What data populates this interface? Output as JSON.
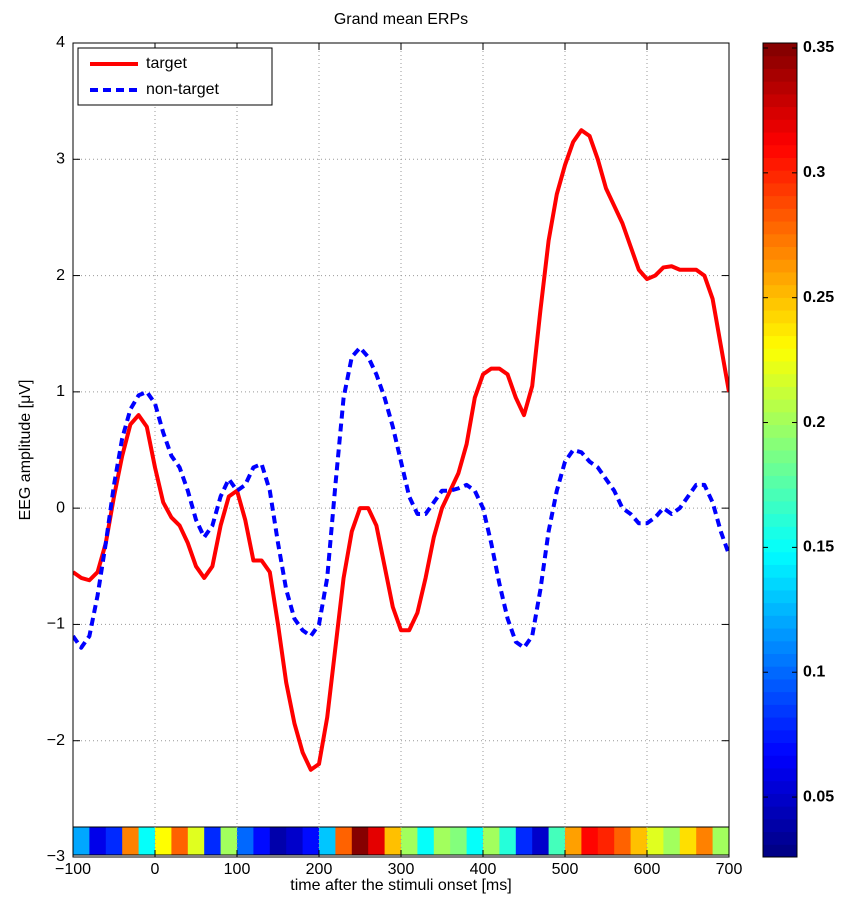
{
  "chart_data": {
    "type": "line",
    "title": "Grand mean ERPs",
    "xlabel": "time after the stimuli onset [ms]",
    "ylabel": "EEG amplitude [μV]",
    "x": [
      -100,
      -90,
      -80,
      -70,
      -60,
      -50,
      -40,
      -30,
      -20,
      -10,
      0,
      10,
      20,
      30,
      40,
      50,
      60,
      70,
      80,
      90,
      100,
      110,
      120,
      130,
      140,
      150,
      160,
      170,
      180,
      190,
      200,
      210,
      220,
      230,
      240,
      250,
      260,
      270,
      280,
      290,
      300,
      310,
      320,
      330,
      340,
      350,
      360,
      370,
      380,
      390,
      400,
      410,
      420,
      430,
      440,
      450,
      460,
      470,
      480,
      490,
      500,
      510,
      520,
      530,
      540,
      550,
      560,
      570,
      580,
      590,
      600,
      610,
      620,
      630,
      640,
      650,
      660,
      670,
      680,
      690,
      700
    ],
    "series": [
      {
        "name": "target",
        "color": "#ff0000",
        "dash": false,
        "values": [
          -0.55,
          -0.6,
          -0.62,
          -0.55,
          -0.3,
          0.1,
          0.45,
          0.72,
          0.8,
          0.7,
          0.35,
          0.05,
          -0.08,
          -0.15,
          -0.3,
          -0.5,
          -0.6,
          -0.5,
          -0.15,
          0.1,
          0.15,
          -0.1,
          -0.45,
          -0.45,
          -0.55,
          -1.0,
          -1.5,
          -1.85,
          -2.1,
          -2.25,
          -2.2,
          -1.8,
          -1.2,
          -0.6,
          -0.2,
          0.0,
          0.0,
          -0.15,
          -0.5,
          -0.85,
          -1.05,
          -1.05,
          -0.9,
          -0.6,
          -0.25,
          0.0,
          0.15,
          0.3,
          0.55,
          0.95,
          1.15,
          1.2,
          1.2,
          1.15,
          0.95,
          0.8,
          1.05,
          1.7,
          2.3,
          2.7,
          2.95,
          3.15,
          3.25,
          3.2,
          3.0,
          2.75,
          2.6,
          2.45,
          2.25,
          2.05,
          1.97,
          2.0,
          2.07,
          2.08,
          2.05,
          2.05,
          2.05,
          2.0,
          1.8,
          1.4,
          1.0
        ]
      },
      {
        "name": "non-target",
        "color": "#0000ff",
        "dash": true,
        "values": [
          -1.1,
          -1.2,
          -1.1,
          -0.75,
          -0.3,
          0.2,
          0.6,
          0.85,
          0.97,
          1.0,
          0.9,
          0.65,
          0.45,
          0.35,
          0.15,
          -0.1,
          -0.25,
          -0.15,
          0.1,
          0.25,
          0.15,
          0.2,
          0.35,
          0.38,
          0.15,
          -0.3,
          -0.7,
          -0.95,
          -1.05,
          -1.1,
          -1.0,
          -0.6,
          0.2,
          0.95,
          1.3,
          1.38,
          1.3,
          1.15,
          0.95,
          0.7,
          0.4,
          0.1,
          -0.05,
          -0.05,
          0.05,
          0.15,
          0.15,
          0.17,
          0.2,
          0.15,
          0.0,
          -0.3,
          -0.65,
          -0.95,
          -1.15,
          -1.2,
          -1.1,
          -0.7,
          -0.2,
          0.15,
          0.4,
          0.5,
          0.48,
          0.4,
          0.35,
          0.25,
          0.15,
          0.0,
          -0.05,
          -0.13,
          -0.13,
          -0.08,
          0.0,
          -0.05,
          0.0,
          0.1,
          0.2,
          0.2,
          0.05,
          -0.2,
          -0.4
        ]
      }
    ],
    "xlim": [
      -100,
      700
    ],
    "xticks": [
      {
        "value": -100,
        "label": "−100"
      },
      0,
      100,
      200,
      300,
      400,
      500,
      600,
      700
    ],
    "ylim": [
      -3,
      4
    ],
    "yticks": [
      {
        "value": -3,
        "label": "−3"
      },
      {
        "value": -2,
        "label": "−2"
      },
      {
        "value": -1,
        "label": "−1"
      },
      0,
      1,
      2,
      3,
      4
    ],
    "grid": true,
    "legend": "upper left",
    "strip": {
      "bins": [
        -100,
        -80,
        -60,
        -40,
        -20,
        0,
        20,
        40,
        60,
        80,
        100,
        120,
        140,
        160,
        180,
        200,
        220,
        240,
        260,
        280,
        300,
        320,
        340,
        360,
        380,
        400,
        420,
        440,
        460,
        480,
        500,
        520,
        540,
        560,
        580,
        600,
        620,
        640,
        660,
        680,
        700
      ],
      "values": [
        0.12,
        0.06,
        0.08,
        0.27,
        0.15,
        0.23,
        0.28,
        0.22,
        0.08,
        0.2,
        0.1,
        0.07,
        0.04,
        0.05,
        0.07,
        0.13,
        0.28,
        0.35,
        0.32,
        0.25,
        0.2,
        0.15,
        0.2,
        0.19,
        0.15,
        0.2,
        0.16,
        0.08,
        0.05,
        0.17,
        0.26,
        0.31,
        0.3,
        0.28,
        0.25,
        0.22,
        0.2,
        0.24,
        0.27,
        0.2
      ]
    },
    "colorbar": {
      "clim": [
        0.026,
        0.352
      ],
      "ticks": [
        0.05,
        0.1,
        0.15,
        0.2,
        0.25,
        0.3,
        0.35
      ]
    }
  }
}
